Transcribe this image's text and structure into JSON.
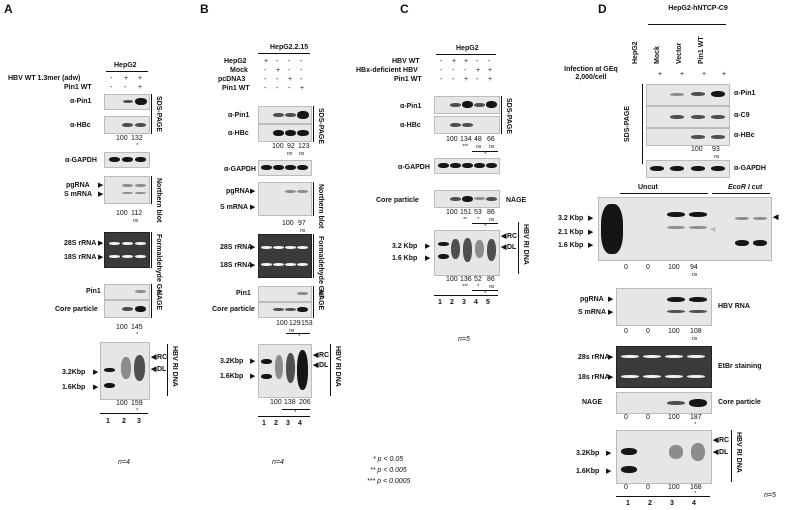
{
  "panels": {
    "A": {
      "letter": "A",
      "cell": "HepG2",
      "rows": [
        "HBV WT 1.3mer (adw)",
        "Pin1 WT"
      ],
      "signs": [
        [
          "-",
          "+",
          "+"
        ],
        [
          "-",
          "-",
          "+"
        ]
      ],
      "blots": [
        "α-Pin1",
        "α-HBc",
        "α-GAPDH"
      ],
      "sds": "SDS-PAGE",
      "q1": [
        "100",
        "132"
      ],
      "northern_labels": [
        "pgRNA",
        "S mRNA"
      ],
      "northern": "Northern blot",
      "q2": [
        "100",
        "112"
      ],
      "rrna": [
        "28S rRNA",
        "18S rRNA"
      ],
      "formaldehyde": "Formaldehyde Gel",
      "nage_labels": [
        "Pin1",
        "Core particle"
      ],
      "nage": "NAGE",
      "q3": [
        "100",
        "145"
      ],
      "dna_sizes": [
        "3.2Kbp",
        "1.6Kbp"
      ],
      "dna_forms": [
        "RC",
        "DL"
      ],
      "dna": "HBV RI DNA",
      "q4": [
        "100",
        "159"
      ],
      "lanes": [
        "1",
        "2",
        "3"
      ],
      "n": "n=4"
    },
    "B": {
      "letter": "B",
      "cell": "HepG2.2.15",
      "rows": [
        "HepG2",
        "Mock",
        "pcDNA3",
        "Pin1 WT"
      ],
      "signs": [
        [
          "+",
          "-",
          "-",
          "-"
        ],
        [
          "-",
          "+",
          "-",
          "-"
        ],
        [
          "-",
          "-",
          "+",
          "-"
        ],
        [
          "-",
          "-",
          "-",
          "+"
        ]
      ],
      "blots": [
        "α-Pin1",
        "α-HBc",
        "α-GAPDH"
      ],
      "sds": "SDS-PAGE",
      "q1": [
        "100",
        "92",
        "123"
      ],
      "northern_labels": [
        "pgRNA",
        "S mRNA"
      ],
      "northern": "Northern blot",
      "q2": [
        "100",
        "97"
      ],
      "rrna": [
        "28S rRNA",
        "18S rRNA"
      ],
      "formaldehyde": "Formaldehyde Gel",
      "nage_labels": [
        "Pin1",
        "Core particle"
      ],
      "nage": "NAGE",
      "q3": [
        "100",
        "129",
        "153"
      ],
      "dna_sizes": [
        "3.2Kbp",
        "1.6Kbp"
      ],
      "dna_forms": [
        "RC",
        "DL"
      ],
      "dna": "HBV RI DNA",
      "q4": [
        "100",
        "138",
        "206"
      ],
      "lanes": [
        "1",
        "2",
        "3",
        "4"
      ],
      "n": "n=4"
    },
    "C": {
      "letter": "C",
      "cell": "HepG2",
      "rows": [
        "HBV WT",
        "HBx-deficient HBV",
        "Pin1 WT"
      ],
      "signs": [
        [
          "-",
          "+",
          "+",
          "-",
          "-"
        ],
        [
          "-",
          "-",
          "-",
          "+",
          "+"
        ],
        [
          "-",
          "-",
          "+",
          "-",
          "+"
        ]
      ],
      "blots": [
        "α-Pin1",
        "α-HBc",
        "α-GAPDH"
      ],
      "sds": "SDS-PAGE",
      "q1": [
        "100",
        "134",
        "48",
        "66"
      ],
      "core_label": "Core particle",
      "nage": "NAGE",
      "q2": [
        "100",
        "151",
        "53",
        "86"
      ],
      "dna_sizes": [
        "3.2 Kbp",
        "1.6 Kbp"
      ],
      "dna_forms": [
        "RC",
        "DL"
      ],
      "dna": "HBV RI DNA",
      "q3": [
        "100",
        "136",
        "52",
        "86"
      ],
      "lanes": [
        "1",
        "2",
        "3",
        "4",
        "5"
      ],
      "n": "n=5",
      "legend": [
        "* p < 0.05",
        "** p < 0.005",
        "*** p < 0.0005"
      ]
    },
    "D": {
      "letter": "D",
      "cell": "HepG2-hNTCP-C9",
      "infection": "Infection at GEq 2,000/cell",
      "columns": [
        "HepG2",
        "Mock",
        "Vector",
        "Pin1 WT"
      ],
      "plus": "+",
      "blots": [
        "α-Pin1",
        "α-C9",
        "α-HBc",
        "α-GAPDH"
      ],
      "sds": "SDS-PAGE",
      "q1": [
        "100",
        "93"
      ],
      "uncut": "Uncut",
      "ecori": "EcoR I cut",
      "southern_sizes": [
        "3.2 Kbp",
        "2.1 Kbp",
        "1.6 Kbp"
      ],
      "q2": [
        "0",
        "0",
        "100",
        "94"
      ],
      "rna_labels": [
        "pgRNA",
        "S mRNA"
      ],
      "rna": "HBV RNA",
      "q3": [
        "0",
        "0",
        "100",
        "108"
      ],
      "rrna": [
        "28s rRNA",
        "18s rRNA"
      ],
      "etbr": "EtBr staining",
      "nage_label": "NAGE",
      "core": "Core particle",
      "q4": [
        "0",
        "0",
        "100",
        "187"
      ],
      "dna_sizes": [
        "3.2Kbp",
        "1.6Kbp"
      ],
      "dna_forms": [
        "RC",
        "DL"
      ],
      "dna": "HBV RI DNA",
      "q5": [
        "0",
        "0",
        "100",
        "168"
      ],
      "lanes": [
        "1",
        "2",
        "3",
        "4"
      ],
      "n": "n=5"
    }
  },
  "marks": {
    "ns": "ns",
    "star": "*",
    "stars2": "**",
    "stars3": "***"
  }
}
